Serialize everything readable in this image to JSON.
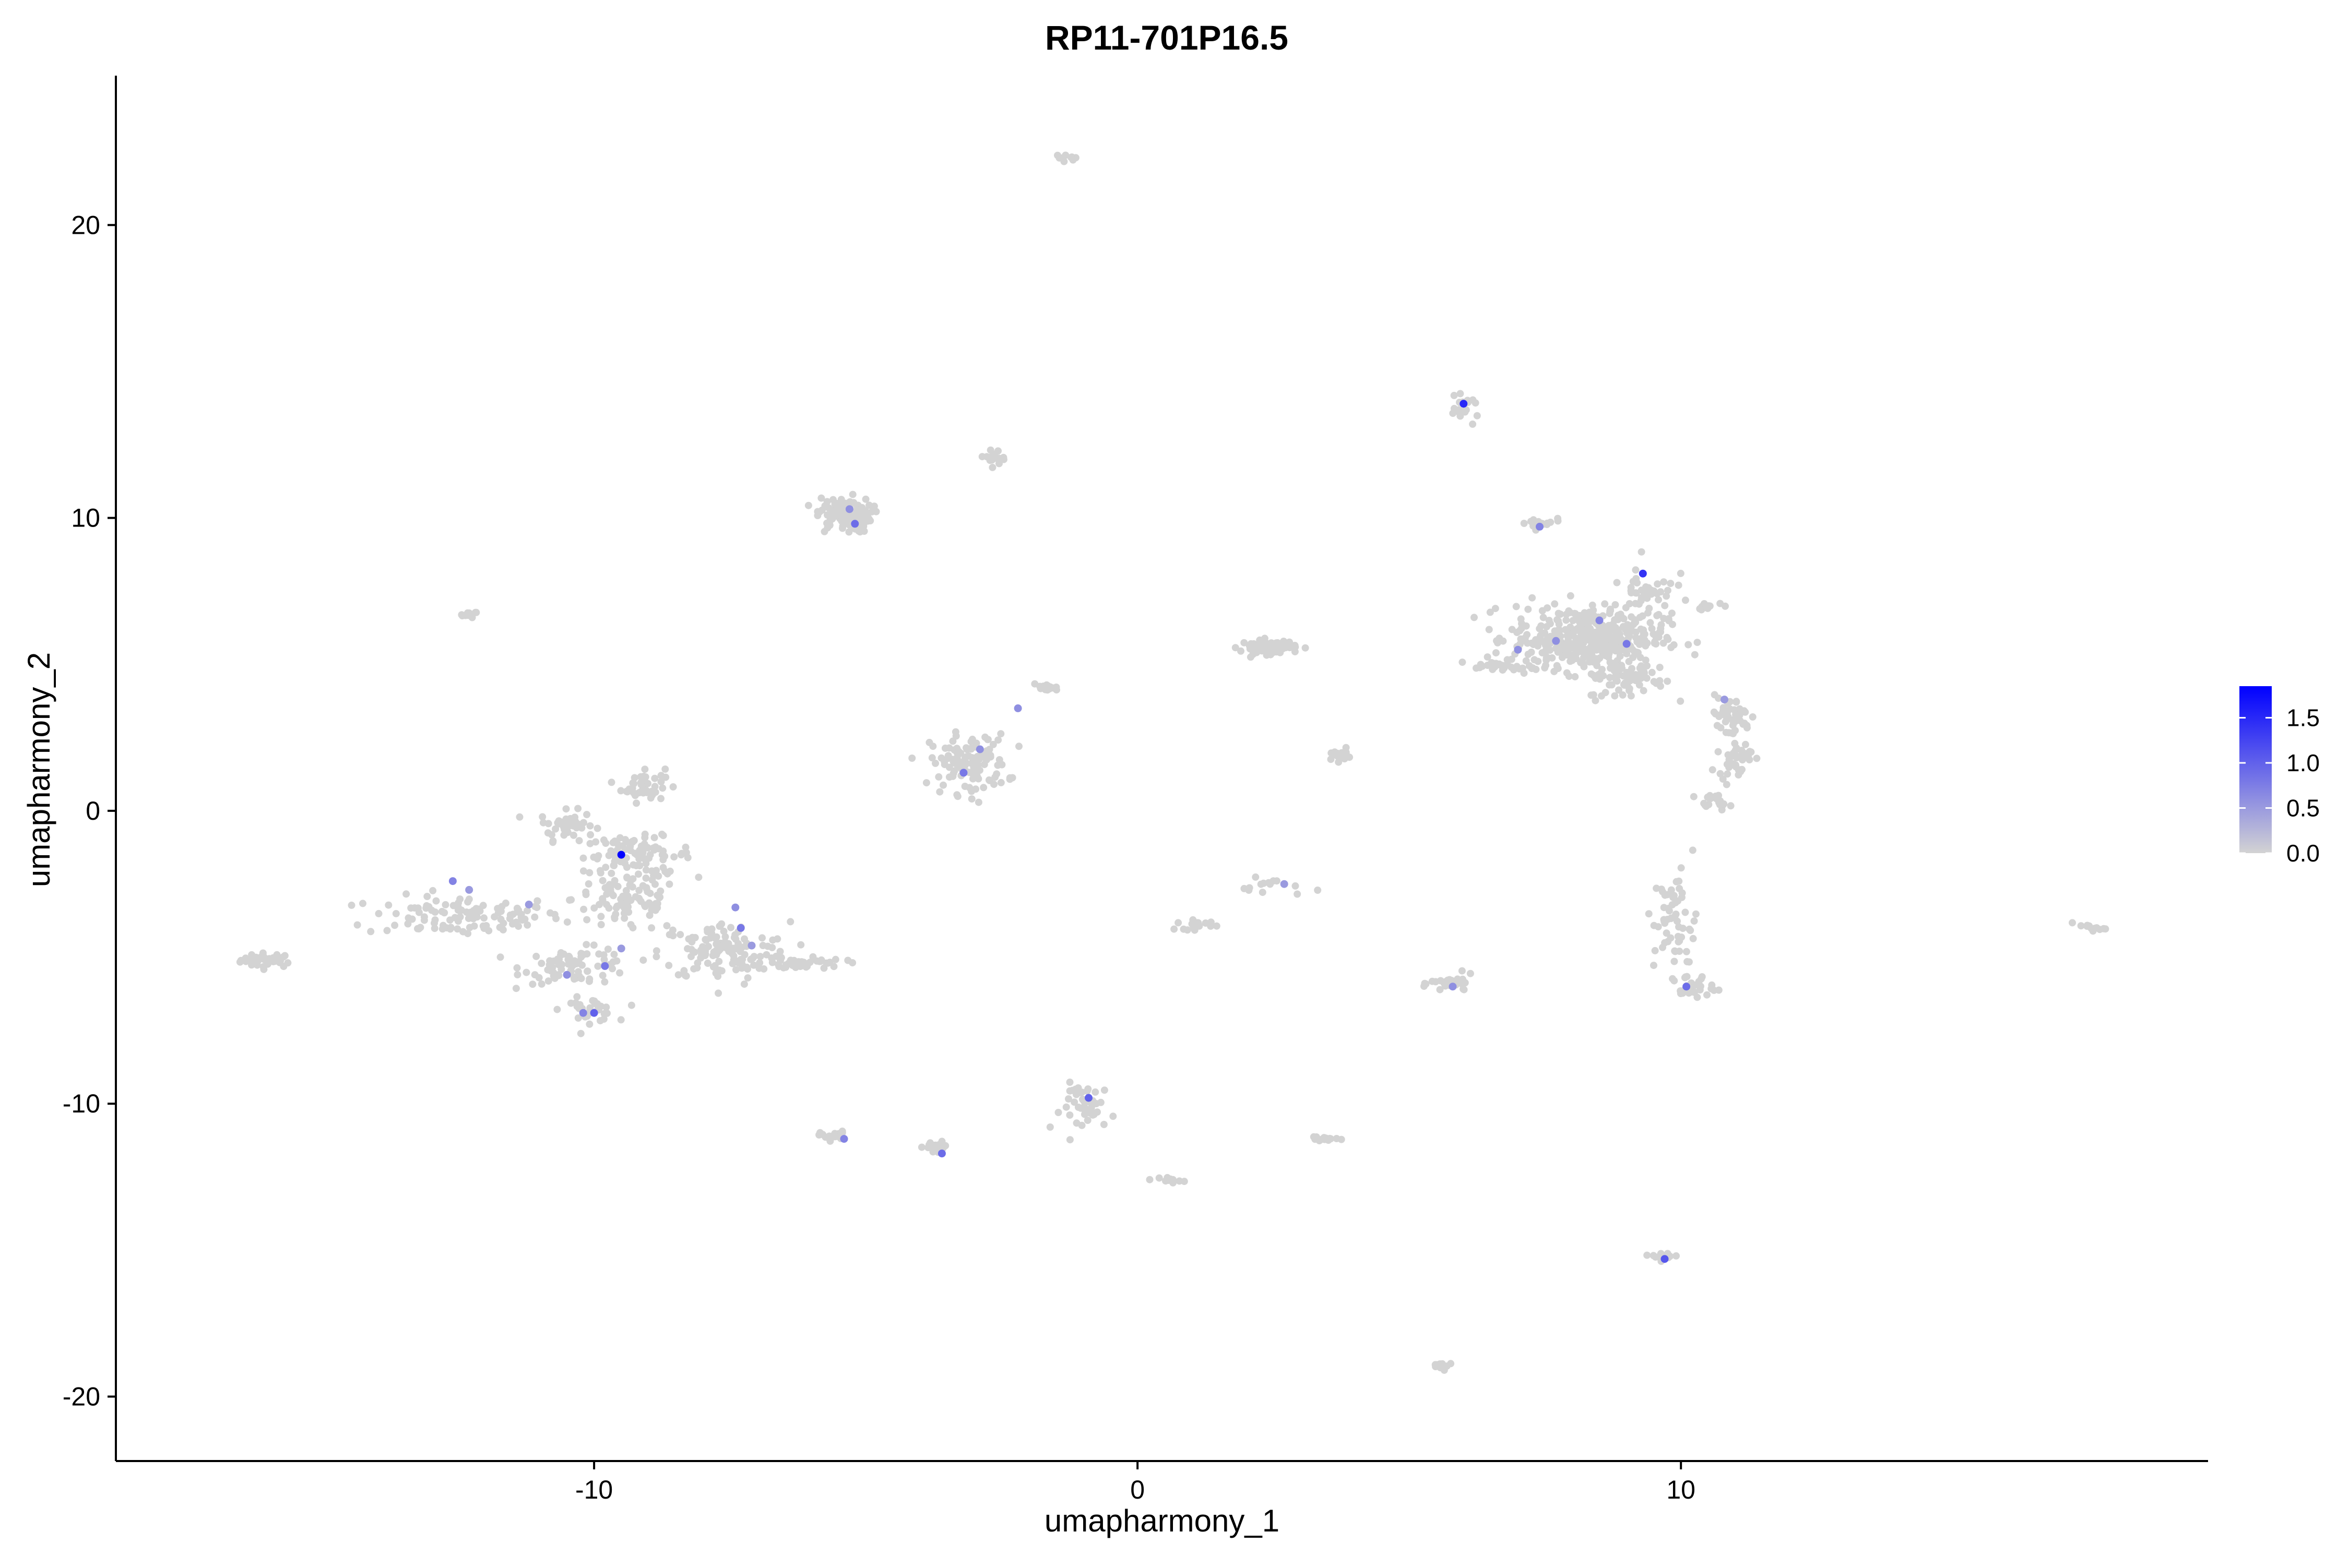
{
  "chart_data": {
    "type": "scatter",
    "title": "RP11-701P16.5",
    "xlabel": "umapharmony_1",
    "ylabel": "umapharmony_2",
    "xlim": [
      -18.8,
      19.7
    ],
    "ylim": [
      -22.2,
      25.1
    ],
    "xticks": [
      -10,
      0,
      10
    ],
    "yticks": [
      -20,
      -10,
      0,
      10,
      20
    ],
    "xtick_labels": [
      "-10",
      "0",
      "10"
    ],
    "ytick_labels": [
      "-20",
      "-10",
      "0",
      "10",
      "20"
    ],
    "grid": false,
    "legend_position": "right",
    "color_scale": {
      "low_color": "#d3d3d3",
      "high_color": "#0000ff",
      "min": 0,
      "max": 1.85,
      "ticks": [
        0,
        0.5,
        1.0,
        1.5
      ],
      "tick_labels": [
        "0.0",
        "0.5",
        "1.0",
        "1.5"
      ]
    },
    "clusters": [
      {
        "cx": -16.0,
        "cy": -5.1,
        "sx": 0.25,
        "sy": 0.12,
        "n": 40
      },
      {
        "cx": -12.3,
        "cy": 6.7,
        "sx": 0.08,
        "sy": 0.05,
        "n": 10
      },
      {
        "cx": -12.4,
        "cy": -3.6,
        "sx": 0.9,
        "sy": 0.35,
        "n": 110
      },
      {
        "cx": -10.5,
        "cy": -0.5,
        "sx": 0.25,
        "sy": 0.25,
        "n": 45
      },
      {
        "cx": -9.1,
        "cy": 0.9,
        "sx": 0.2,
        "sy": 0.3,
        "n": 45
      },
      {
        "cx": -9.2,
        "cy": -1.5,
        "sx": 0.5,
        "sy": 0.3,
        "n": 80
      },
      {
        "cx": -9.4,
        "cy": -3.0,
        "sx": 0.5,
        "sy": 0.6,
        "n": 100
      },
      {
        "cx": -10.3,
        "cy": -5.3,
        "sx": 0.5,
        "sy": 0.3,
        "n": 80
      },
      {
        "cx": -10.1,
        "cy": -6.8,
        "sx": 0.25,
        "sy": 0.2,
        "n": 35
      },
      {
        "cx": -7.6,
        "cy": -4.8,
        "sx": 0.6,
        "sy": 0.5,
        "n": 130
      },
      {
        "cx": -6.2,
        "cy": -5.2,
        "sx": 0.4,
        "sy": 0.12,
        "n": 40
      },
      {
        "cx": -5.4,
        "cy": 10.1,
        "sx": 0.25,
        "sy": 0.3,
        "n": 110
      },
      {
        "cx": -5.6,
        "cy": -11.1,
        "sx": 0.12,
        "sy": 0.08,
        "n": 20
      },
      {
        "cx": -3.7,
        "cy": -11.5,
        "sx": 0.12,
        "sy": 0.1,
        "n": 25
      },
      {
        "cx": -3.1,
        "cy": 1.6,
        "sx": 0.35,
        "sy": 0.5,
        "n": 120
      },
      {
        "cx": -2.6,
        "cy": 12.1,
        "sx": 0.15,
        "sy": 0.12,
        "n": 18
      },
      {
        "cx": -1.7,
        "cy": 4.2,
        "sx": 0.12,
        "sy": 0.06,
        "n": 14
      },
      {
        "cx": -1.3,
        "cy": 22.3,
        "sx": 0.1,
        "sy": 0.05,
        "n": 10
      },
      {
        "cx": -0.9,
        "cy": -10.1,
        "sx": 0.25,
        "sy": 0.4,
        "n": 45
      },
      {
        "cx": 0.6,
        "cy": -12.6,
        "sx": 0.1,
        "sy": 0.05,
        "n": 12
      },
      {
        "cx": 1.1,
        "cy": -3.9,
        "sx": 0.2,
        "sy": 0.08,
        "n": 16
      },
      {
        "cx": 2.4,
        "cy": 5.6,
        "sx": 0.25,
        "sy": 0.12,
        "n": 90
      },
      {
        "cx": 2.5,
        "cy": -2.6,
        "sx": 0.3,
        "sy": 0.15,
        "n": 14
      },
      {
        "cx": 3.4,
        "cy": -11.2,
        "sx": 0.15,
        "sy": 0.06,
        "n": 14
      },
      {
        "cx": 3.7,
        "cy": 1.9,
        "sx": 0.12,
        "sy": 0.1,
        "n": 18
      },
      {
        "cx": 5.6,
        "cy": -18.9,
        "sx": 0.12,
        "sy": 0.08,
        "n": 12
      },
      {
        "cx": 6.0,
        "cy": 13.7,
        "sx": 0.15,
        "sy": 0.2,
        "n": 20
      },
      {
        "cx": 5.8,
        "cy": -5.9,
        "sx": 0.2,
        "sy": 0.15,
        "n": 30
      },
      {
        "cx": 7.4,
        "cy": 9.8,
        "sx": 0.2,
        "sy": 0.1,
        "n": 18
      },
      {
        "cx": 6.7,
        "cy": 4.9,
        "sx": 0.35,
        "sy": 0.1,
        "n": 30
      },
      {
        "cx": 8.3,
        "cy": 5.9,
        "sx": 0.7,
        "sy": 0.55,
        "n": 420
      },
      {
        "cx": 9.0,
        "cy": 4.5,
        "sx": 0.35,
        "sy": 0.35,
        "n": 70
      },
      {
        "cx": 9.4,
        "cy": 7.6,
        "sx": 0.25,
        "sy": 0.5,
        "n": 40
      },
      {
        "cx": 10.5,
        "cy": 7.0,
        "sx": 0.2,
        "sy": 0.05,
        "n": 12
      },
      {
        "cx": 10.9,
        "cy": 3.2,
        "sx": 0.2,
        "sy": 0.35,
        "n": 50
      },
      {
        "cx": 11.0,
        "cy": 1.8,
        "sx": 0.15,
        "sy": 0.3,
        "n": 40
      },
      {
        "cx": 10.6,
        "cy": 0.3,
        "sx": 0.15,
        "sy": 0.12,
        "n": 20
      },
      {
        "cx": 9.9,
        "cy": -3.8,
        "sx": 0.2,
        "sy": 0.9,
        "n": 60
      },
      {
        "cx": 10.2,
        "cy": -6.0,
        "sx": 0.2,
        "sy": 0.2,
        "n": 30
      },
      {
        "cx": 9.6,
        "cy": -15.2,
        "sx": 0.15,
        "sy": 0.08,
        "n": 12
      },
      {
        "cx": 17.5,
        "cy": -4.0,
        "sx": 0.15,
        "sy": 0.05,
        "n": 12
      }
    ],
    "expressing_points": [
      {
        "x": -9.5,
        "y": -1.5,
        "v": 1.85
      },
      {
        "x": 9.3,
        "y": 8.1,
        "v": 1.4
      },
      {
        "x": 6.0,
        "y": 13.9,
        "v": 1.5
      },
      {
        "x": 9.7,
        "y": -15.3,
        "v": 1.1
      },
      {
        "x": -10.0,
        "y": -6.9,
        "v": 1.0
      },
      {
        "x": -10.2,
        "y": -6.9,
        "v": 0.7
      },
      {
        "x": -7.3,
        "y": -4.0,
        "v": 0.8
      },
      {
        "x": -7.4,
        "y": -3.3,
        "v": 0.6
      },
      {
        "x": -5.3,
        "y": 10.3,
        "v": 0.6
      },
      {
        "x": -5.2,
        "y": 9.8,
        "v": 0.9
      },
      {
        "x": -3.6,
        "y": -11.7,
        "v": 0.9
      },
      {
        "x": -5.4,
        "y": -11.2,
        "v": 0.7
      },
      {
        "x": -0.9,
        "y": -9.8,
        "v": 1.0
      },
      {
        "x": -3.2,
        "y": 1.3,
        "v": 0.8
      },
      {
        "x": -2.9,
        "y": 2.1,
        "v": 0.6
      },
      {
        "x": -2.2,
        "y": 3.5,
        "v": 0.6
      },
      {
        "x": 10.1,
        "y": -6.0,
        "v": 0.9
      },
      {
        "x": 9.0,
        "y": 5.7,
        "v": 0.8
      },
      {
        "x": 8.5,
        "y": 6.5,
        "v": 0.7
      },
      {
        "x": 7.4,
        "y": 9.7,
        "v": 0.7
      },
      {
        "x": 7.0,
        "y": 5.5,
        "v": 0.6
      },
      {
        "x": -12.6,
        "y": -2.4,
        "v": 0.7
      },
      {
        "x": -11.2,
        "y": -3.2,
        "v": 0.5
      },
      {
        "x": -9.8,
        "y": -5.3,
        "v": 0.8
      },
      {
        "x": -9.5,
        "y": -4.7,
        "v": 0.5
      },
      {
        "x": -12.3,
        "y": -2.7,
        "v": 0.5
      },
      {
        "x": 5.8,
        "y": -6.0,
        "v": 0.6
      },
      {
        "x": 2.7,
        "y": -2.5,
        "v": 0.5
      },
      {
        "x": 7.7,
        "y": 5.8,
        "v": 0.6
      },
      {
        "x": 10.8,
        "y": 3.8,
        "v": 0.5
      },
      {
        "x": -10.5,
        "y": -5.6,
        "v": 0.6
      },
      {
        "x": -7.1,
        "y": -4.6,
        "v": 0.5
      }
    ]
  }
}
